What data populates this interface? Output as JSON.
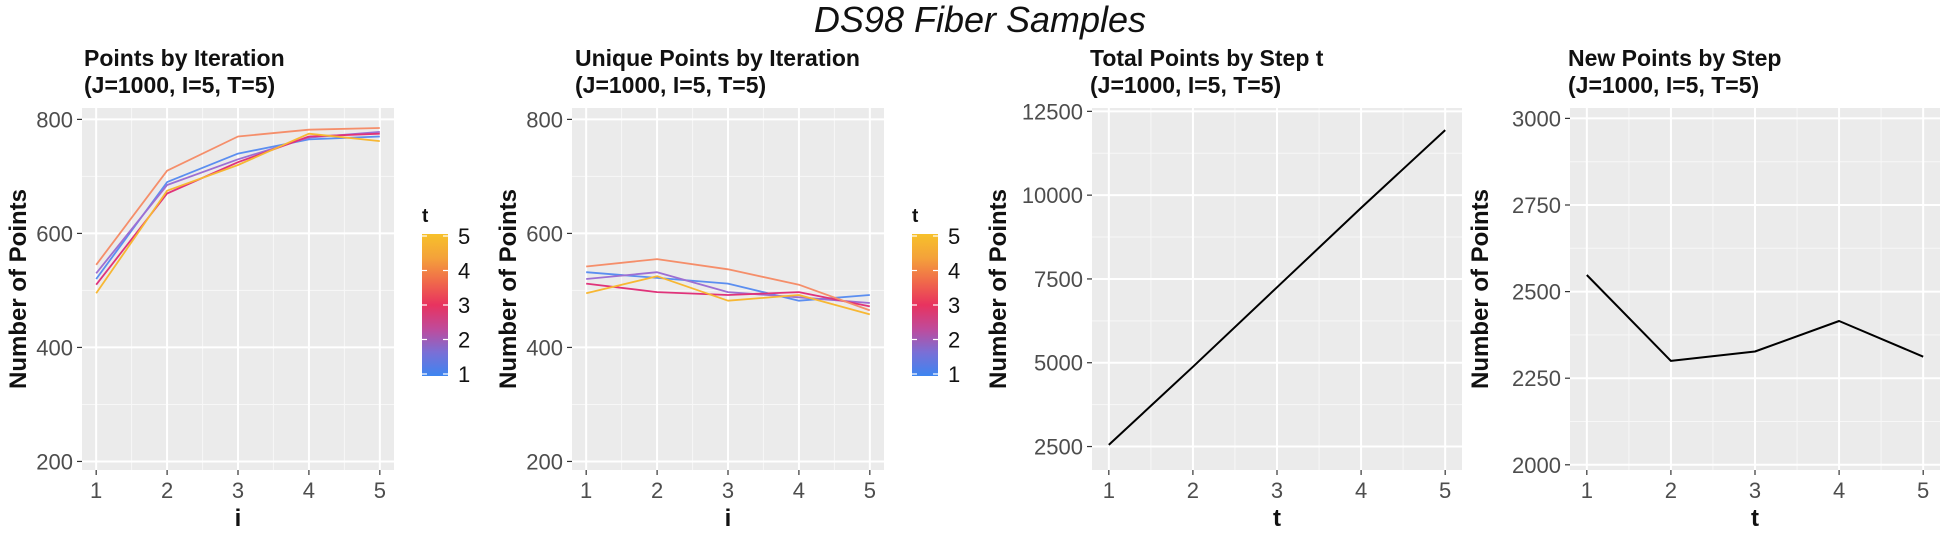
{
  "figure_title": "DS98 Fiber Samples",
  "legend": {
    "title": "t",
    "labels": [
      "5",
      "4",
      "3",
      "2",
      "1"
    ],
    "gradient": [
      "#3d85f0",
      "#7a6fd6",
      "#c04a9a",
      "#e8325f",
      "#f06a4a",
      "#f4a23a",
      "#f7c12a"
    ]
  },
  "chart_data": [
    {
      "type": "line",
      "title_line1": "Points by Iteration",
      "title_line2": "(J=1000,  I=5, T=5)",
      "xlabel": "i",
      "ylabel": "Number of Points",
      "xlim": [
        0.8,
        5.2
      ],
      "ylim": [
        185,
        820
      ],
      "xticks": [
        1,
        2,
        3,
        4,
        5
      ],
      "xtick_labels": [
        "1",
        "2",
        "3",
        "4",
        "5"
      ],
      "yticks": [
        200,
        400,
        600,
        800
      ],
      "ytick_labels": [
        "200",
        "400",
        "600",
        "800"
      ],
      "color_legend": "t",
      "x": [
        1,
        2,
        3,
        4,
        5
      ],
      "series": [
        {
          "t": 1,
          "color": "#5b8ef0",
          "values": [
            520,
            690,
            740,
            765,
            770
          ]
        },
        {
          "t": 2,
          "color": "#9d6fd3",
          "values": [
            530,
            685,
            730,
            768,
            778
          ]
        },
        {
          "t": 3,
          "color": "#e0337a",
          "values": [
            510,
            670,
            725,
            770,
            775
          ]
        },
        {
          "t": 4,
          "color": "#f58e6a",
          "values": [
            545,
            710,
            770,
            782,
            785
          ]
        },
        {
          "t": 5,
          "color": "#f7b733",
          "values": [
            495,
            675,
            720,
            775,
            762
          ]
        }
      ]
    },
    {
      "type": "line",
      "title_line1": "Unique Points by Iteration",
      "title_line2": "(J=1000,  I=5, T=5)",
      "xlabel": "i",
      "ylabel": "Number of Points",
      "xlim": [
        0.8,
        5.2
      ],
      "ylim": [
        185,
        820
      ],
      "xticks": [
        1,
        2,
        3,
        4,
        5
      ],
      "xtick_labels": [
        "1",
        "2",
        "3",
        "4",
        "5"
      ],
      "yticks": [
        200,
        400,
        600,
        800
      ],
      "ytick_labels": [
        "200",
        "400",
        "600",
        "800"
      ],
      "color_legend": "t",
      "x": [
        1,
        2,
        3,
        4,
        5
      ],
      "series": [
        {
          "t": 1,
          "color": "#5b8ef0",
          "values": [
            532,
            522,
            512,
            482,
            492
          ]
        },
        {
          "t": 2,
          "color": "#9d6fd3",
          "values": [
            520,
            532,
            497,
            488,
            478
          ]
        },
        {
          "t": 3,
          "color": "#e0337a",
          "values": [
            512,
            497,
            492,
            497,
            472
          ]
        },
        {
          "t": 4,
          "color": "#f58e6a",
          "values": [
            542,
            555,
            537,
            510,
            465
          ]
        },
        {
          "t": 5,
          "color": "#f7b733",
          "values": [
            495,
            525,
            482,
            492,
            458
          ]
        }
      ]
    },
    {
      "type": "line",
      "title_line1": "Total Points by Step t",
      "title_line2": "(J=1000,  I=5, T=5)",
      "xlabel": "t",
      "ylabel": "Number of Points",
      "xlim": [
        0.8,
        5.2
      ],
      "ylim": [
        1800,
        12600
      ],
      "xticks": [
        1,
        2,
        3,
        4,
        5
      ],
      "xtick_labels": [
        "1",
        "2",
        "3",
        "4",
        "5"
      ],
      "yticks": [
        2500,
        5000,
        7500,
        10000,
        12500
      ],
      "ytick_labels": [
        "2500",
        "5000",
        "7500",
        "10000",
        "12500"
      ],
      "x": [
        1,
        2,
        3,
        4,
        5
      ],
      "series": [
        {
          "color": "#000000",
          "values": [
            2550,
            4880,
            7250,
            9620,
            11940
          ]
        }
      ]
    },
    {
      "type": "line",
      "title_line1": "New Points by Step",
      "title_line2": "(J=1000,  I=5, T=5)",
      "xlabel": "t",
      "ylabel": "Number of Points",
      "xlim": [
        0.8,
        5.2
      ],
      "ylim": [
        1985,
        3030
      ],
      "xticks": [
        1,
        2,
        3,
        4,
        5
      ],
      "xtick_labels": [
        "1",
        "2",
        "3",
        "4",
        "5"
      ],
      "yticks": [
        2000,
        2250,
        2500,
        2750,
        3000
      ],
      "ytick_labels": [
        "2000",
        "2250",
        "2500",
        "2750",
        "3000"
      ],
      "x": [
        1,
        2,
        3,
        4,
        5
      ],
      "series": [
        {
          "color": "#000000",
          "values": [
            2548,
            2300,
            2327,
            2415,
            2312
          ]
        }
      ]
    }
  ]
}
